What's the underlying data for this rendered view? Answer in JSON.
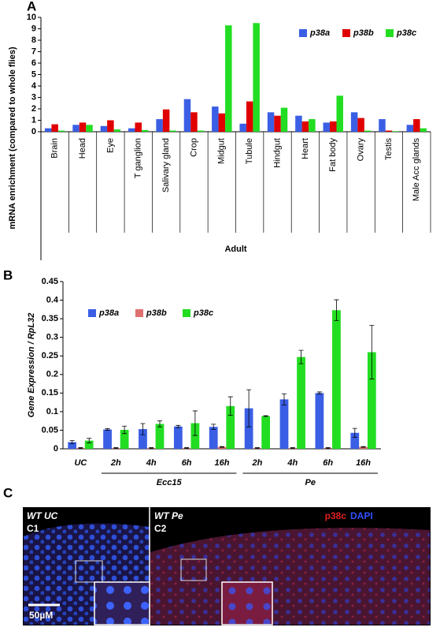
{
  "chart_data": [
    {
      "type": "bar",
      "panel": "A",
      "y_label": "mRNA enrichment (compared to whole flies)",
      "group_label": "Adult",
      "categories": [
        "Brain",
        "Head",
        "Eye",
        "T ganglion",
        "Salivary gland",
        "Crop",
        "Midgut",
        "Tubule",
        "Hindgut",
        "Heart",
        "Fat body",
        "Ovary",
        "Testis",
        "Male Acc glands"
      ],
      "series": [
        {
          "name": "p38a",
          "color": "#3a5fe5",
          "values": [
            0.3,
            0.6,
            0.5,
            0.3,
            1.1,
            2.85,
            2.2,
            0.7,
            1.7,
            1.4,
            0.8,
            1.7,
            1.1,
            0.6
          ]
        },
        {
          "name": "p38b",
          "color": "#e00000",
          "values": [
            0.65,
            0.8,
            1.0,
            0.8,
            1.95,
            1.7,
            1.6,
            2.65,
            1.4,
            0.9,
            0.9,
            1.2,
            0.1,
            1.1
          ]
        },
        {
          "name": "p38c",
          "color": "#22dd22",
          "values": [
            0.1,
            0.6,
            0.2,
            0.15,
            0.1,
            0.1,
            9.3,
            9.5,
            2.1,
            1.1,
            3.15,
            0.1,
            0.05,
            0.3
          ]
        }
      ],
      "ylim": [
        0,
        10
      ],
      "yticks": [
        0,
        1,
        2,
        3,
        4,
        5,
        6,
        7,
        8,
        9,
        10
      ],
      "grid": false,
      "legend": "top-right"
    },
    {
      "type": "bar",
      "panel": "B",
      "y_label": "Gene Expression / RpL32",
      "groups": [
        "Ecc15",
        "Pe"
      ],
      "categories": [
        "UC",
        "2h",
        "4h",
        "6h",
        "16h",
        "2h",
        "4h",
        "6h",
        "16h"
      ],
      "series": [
        {
          "name": "p38a",
          "color": "#3a5fe5",
          "values": [
            0.018,
            0.052,
            0.053,
            0.06,
            0.059,
            0.109,
            0.133,
            0.15,
            0.043
          ],
          "errors": [
            0.004,
            0.002,
            0.015,
            0.003,
            0.007,
            0.05,
            0.015,
            0.003,
            0.012
          ]
        },
        {
          "name": "p38b",
          "color": "#e07070",
          "values": [
            0.002,
            0.002,
            0.002,
            0.002,
            0.005,
            0.002,
            0.002,
            0.002,
            0.005
          ],
          "errors": [
            0.001,
            0.001,
            0.001,
            0.001,
            0.001,
            0.001,
            0.001,
            0.001,
            0.001
          ]
        },
        {
          "name": "p38c",
          "color": "#22dd22",
          "values": [
            0.022,
            0.051,
            0.067,
            0.069,
            0.115,
            0.088,
            0.247,
            0.373,
            0.26
          ],
          "errors": [
            0.006,
            0.01,
            0.008,
            0.033,
            0.025,
            0.001,
            0.018,
            0.028,
            0.072
          ]
        }
      ],
      "ylim": [
        0,
        0.45
      ],
      "yticks": [
        0,
        0.05,
        0.1,
        0.15,
        0.2,
        0.25,
        0.3,
        0.35,
        0.4,
        0.45
      ],
      "grid": false,
      "legend": "top-left"
    }
  ],
  "panel_c": {
    "panel": "C",
    "left_title": "WT UC",
    "left_id": "C1",
    "right_title": "WT Pe",
    "right_id": "C2",
    "stain_red": "p38c",
    "stain_blue": "DAPI",
    "scale": "50µM"
  }
}
